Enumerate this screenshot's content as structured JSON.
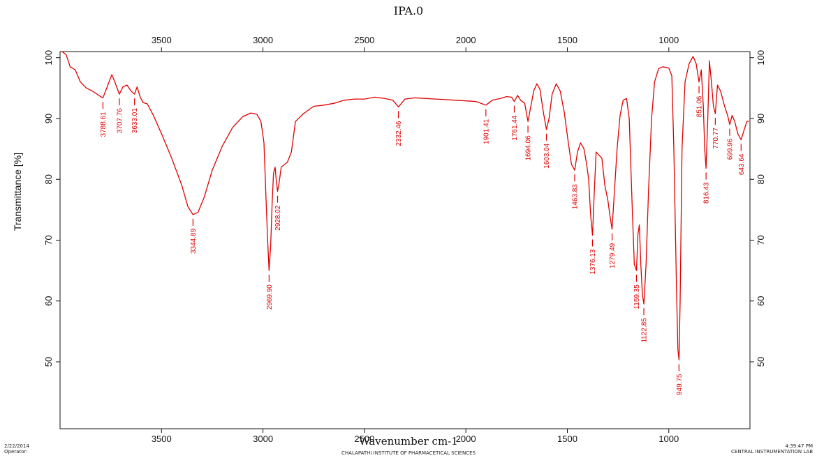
{
  "chart_data": {
    "type": "line",
    "title": "IPA.0",
    "xlabel": "Wavenumber cm-1",
    "ylabel": "Transmittance [%]",
    "xlim": [
      4000,
      600
    ],
    "x_reversed": true,
    "ylim": [
      39,
      101
    ],
    "xticks": [
      3500,
      3000,
      2500,
      2000,
      1500,
      1000
    ],
    "yticks": [
      50,
      60,
      70,
      80,
      90,
      100
    ],
    "grid": false,
    "line_color": "#e00000",
    "series": [
      {
        "points": [
          [
            3990,
            101
          ],
          [
            3970,
            100.5
          ],
          [
            3950,
            98.5
          ],
          [
            3925,
            98.0
          ],
          [
            3900,
            96.0
          ],
          [
            3870,
            95.0
          ],
          [
            3840,
            94.5
          ],
          [
            3800,
            93.6
          ],
          [
            3788.61,
            93.4
          ],
          [
            3770,
            95.0
          ],
          [
            3745,
            97.2
          ],
          [
            3730,
            96.0
          ],
          [
            3707.76,
            94.0
          ],
          [
            3690,
            95.2
          ],
          [
            3670,
            95.5
          ],
          [
            3650,
            94.5
          ],
          [
            3633.01,
            94.0
          ],
          [
            3620,
            95.2
          ],
          [
            3605,
            93.5
          ],
          [
            3590,
            92.6
          ],
          [
            3570,
            92.4
          ],
          [
            3540,
            90.5
          ],
          [
            3500,
            87.5
          ],
          [
            3450,
            83.5
          ],
          [
            3400,
            79.0
          ],
          [
            3370,
            75.5
          ],
          [
            3344.89,
            74.2
          ],
          [
            3320,
            74.6
          ],
          [
            3290,
            77.0
          ],
          [
            3250,
            81.5
          ],
          [
            3200,
            85.5
          ],
          [
            3150,
            88.5
          ],
          [
            3100,
            90.3
          ],
          [
            3060,
            90.9
          ],
          [
            3030,
            90.7
          ],
          [
            3010,
            89.5
          ],
          [
            2995,
            86.0
          ],
          [
            2985,
            77.0
          ],
          [
            2977,
            70.0
          ],
          [
            2969.9,
            65.0
          ],
          [
            2962,
            69.0
          ],
          [
            2955,
            76.0
          ],
          [
            2948,
            81.0
          ],
          [
            2940,
            82.0
          ],
          [
            2935,
            80.0
          ],
          [
            2928.02,
            78.0
          ],
          [
            2920,
            79.5
          ],
          [
            2910,
            82.0
          ],
          [
            2880,
            82.8
          ],
          [
            2860,
            84.5
          ],
          [
            2840,
            89.5
          ],
          [
            2800,
            90.8
          ],
          [
            2750,
            92.0
          ],
          [
            2700,
            92.2
          ],
          [
            2650,
            92.5
          ],
          [
            2600,
            93.0
          ],
          [
            2550,
            93.2
          ],
          [
            2500,
            93.2
          ],
          [
            2450,
            93.5
          ],
          [
            2400,
            93.3
          ],
          [
            2360,
            93.0
          ],
          [
            2332.46,
            91.9
          ],
          [
            2300,
            93.2
          ],
          [
            2250,
            93.4
          ],
          [
            2200,
            93.3
          ],
          [
            2150,
            93.2
          ],
          [
            2100,
            93.1
          ],
          [
            2050,
            93.0
          ],
          [
            2000,
            92.9
          ],
          [
            1950,
            92.8
          ],
          [
            1901.41,
            92.2
          ],
          [
            1870,
            93.0
          ],
          [
            1830,
            93.3
          ],
          [
            1800,
            93.6
          ],
          [
            1775,
            93.5
          ],
          [
            1761.44,
            92.8
          ],
          [
            1745,
            93.8
          ],
          [
            1730,
            93.0
          ],
          [
            1710,
            92.5
          ],
          [
            1694.06,
            89.5
          ],
          [
            1680,
            92.0
          ],
          [
            1665,
            94.6
          ],
          [
            1650,
            95.7
          ],
          [
            1635,
            94.8
          ],
          [
            1618,
            91.0
          ],
          [
            1603.04,
            88.2
          ],
          [
            1590,
            90.0
          ],
          [
            1575,
            94.0
          ],
          [
            1555,
            95.7
          ],
          [
            1535,
            94.5
          ],
          [
            1515,
            91.0
          ],
          [
            1495,
            86.0
          ],
          [
            1480,
            82.5
          ],
          [
            1463.83,
            81.5
          ],
          [
            1450,
            84.5
          ],
          [
            1435,
            86.0
          ],
          [
            1418,
            85.0
          ],
          [
            1405,
            82.5
          ],
          [
            1395,
            80.0
          ],
          [
            1385,
            74.0
          ],
          [
            1376.13,
            70.8
          ],
          [
            1367,
            78.0
          ],
          [
            1358,
            84.5
          ],
          [
            1345,
            84.0
          ],
          [
            1330,
            83.5
          ],
          [
            1315,
            79.0
          ],
          [
            1300,
            76.5
          ],
          [
            1290,
            74.0
          ],
          [
            1279.49,
            71.8
          ],
          [
            1268,
            78.0
          ],
          [
            1255,
            85.0
          ],
          [
            1240,
            90.5
          ],
          [
            1225,
            93.0
          ],
          [
            1208,
            93.3
          ],
          [
            1195,
            90.0
          ],
          [
            1180,
            75.0
          ],
          [
            1170,
            66.0
          ],
          [
            1159.35,
            65.0
          ],
          [
            1152,
            71.0
          ],
          [
            1145,
            72.5
          ],
          [
            1138,
            66.0
          ],
          [
            1130,
            61.0
          ],
          [
            1122.85,
            59.5
          ],
          [
            1112,
            66.0
          ],
          [
            1100,
            78.0
          ],
          [
            1085,
            90.0
          ],
          [
            1070,
            96.0
          ],
          [
            1050,
            98.2
          ],
          [
            1030,
            98.5
          ],
          [
            1000,
            98.3
          ],
          [
            985,
            97.0
          ],
          [
            975,
            85.0
          ],
          [
            962,
            62.0
          ],
          [
            955,
            52.0
          ],
          [
            949.75,
            50.3
          ],
          [
            944,
            60.0
          ],
          [
            935,
            85.0
          ],
          [
            920,
            96.0
          ],
          [
            900,
            99.0
          ],
          [
            880,
            100.2
          ],
          [
            865,
            99.0
          ],
          [
            851.06,
            96.0
          ],
          [
            840,
            98.0
          ],
          [
            830,
            92.0
          ],
          [
            823,
            85.0
          ],
          [
            816.43,
            81.8
          ],
          [
            808,
            90.0
          ],
          [
            800,
            99.5
          ],
          [
            790,
            96.0
          ],
          [
            780,
            92.0
          ],
          [
            770.77,
            90.8
          ],
          [
            760,
            95.5
          ],
          [
            745,
            94.5
          ],
          [
            725,
            92.0
          ],
          [
            710,
            90.5
          ],
          [
            699.96,
            89.0
          ],
          [
            688,
            90.5
          ],
          [
            675,
            89.5
          ],
          [
            660,
            87.5
          ],
          [
            643.64,
            86.5
          ],
          [
            630,
            88.0
          ],
          [
            615,
            89.5
          ],
          [
            605,
            89.6
          ]
        ]
      }
    ],
    "peaks": [
      {
        "label": "3788.61",
        "x": 3788.61,
        "y": 93.4
      },
      {
        "label": "3707.76",
        "x": 3707.76,
        "y": 94.0
      },
      {
        "label": "3633.01",
        "x": 3633.01,
        "y": 94.0
      },
      {
        "label": "3344.89",
        "x": 3344.89,
        "y": 74.2
      },
      {
        "label": "2969.90",
        "x": 2969.9,
        "y": 65.0
      },
      {
        "label": "2928.02",
        "x": 2928.02,
        "y": 78.0
      },
      {
        "label": "2332.46",
        "x": 2332.46,
        "y": 91.9
      },
      {
        "label": "1901.41",
        "x": 1901.41,
        "y": 92.2
      },
      {
        "label": "1761.44",
        "x": 1761.44,
        "y": 92.8
      },
      {
        "label": "1694.06",
        "x": 1694.06,
        "y": 89.5
      },
      {
        "label": "1603.04",
        "x": 1603.04,
        "y": 88.2
      },
      {
        "label": "1463.83",
        "x": 1463.83,
        "y": 81.5
      },
      {
        "label": "1376.13",
        "x": 1376.13,
        "y": 70.8
      },
      {
        "label": "1279.49",
        "x": 1279.49,
        "y": 71.8
      },
      {
        "label": "1159.35",
        "x": 1159.35,
        "y": 65.0
      },
      {
        "label": "1122.85",
        "x": 1122.85,
        "y": 59.5
      },
      {
        "label": "949.75",
        "x": 949.75,
        "y": 50.3
      },
      {
        "label": "851.06",
        "x": 851.06,
        "y": 96.0
      },
      {
        "label": "816.43",
        "x": 816.43,
        "y": 81.8
      },
      {
        "label": "770.77",
        "x": 770.77,
        "y": 90.8
      },
      {
        "label": "699.96",
        "x": 699.96,
        "y": 89.0
      },
      {
        "label": "643.64",
        "x": 643.64,
        "y": 86.5
      }
    ]
  },
  "footer": {
    "date": "2/22/2014",
    "operator": "Operator:",
    "institute": "CHALAPATHI INSTITUTE OF PHARMACETICAL SCIENCES",
    "time": "4:39:47 PM",
    "lab": "CENTRAL INSTRUMENTATION LAB"
  }
}
